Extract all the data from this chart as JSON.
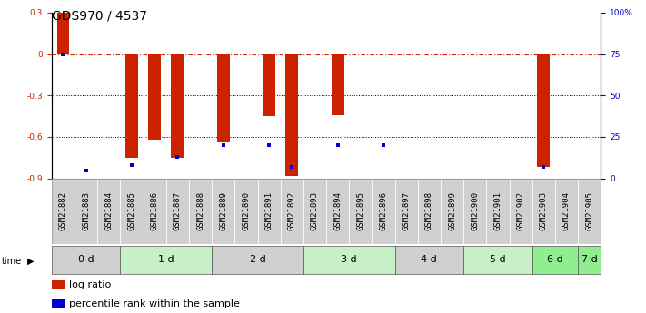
{
  "title": "GDS970 / 4537",
  "samples": [
    "GSM21882",
    "GSM21883",
    "GSM21884",
    "GSM21885",
    "GSM21886",
    "GSM21887",
    "GSM21888",
    "GSM21889",
    "GSM21890",
    "GSM21891",
    "GSM21892",
    "GSM21893",
    "GSM21894",
    "GSM21895",
    "GSM21896",
    "GSM21897",
    "GSM21898",
    "GSM21899",
    "GSM21900",
    "GSM21901",
    "GSM21902",
    "GSM21903",
    "GSM21904",
    "GSM21905"
  ],
  "log_ratio": [
    0.3,
    0.0,
    0.0,
    -0.75,
    -0.62,
    -0.75,
    0.0,
    -0.63,
    0.0,
    -0.45,
    -0.88,
    0.0,
    -0.44,
    0.0,
    0.0,
    0.0,
    0.0,
    0.0,
    0.0,
    0.0,
    0.0,
    -0.82,
    0.0,
    0.0
  ],
  "percentile_rank": [
    75,
    5,
    0,
    8,
    0,
    13,
    0,
    20,
    0,
    20,
    7,
    0,
    20,
    0,
    20,
    0,
    0,
    0,
    0,
    0,
    0,
    7,
    0,
    0
  ],
  "time_groups_order": [
    "0 d",
    "1 d",
    "2 d",
    "3 d",
    "4 d",
    "5 d",
    "6 d",
    "7 d"
  ],
  "time_groups": {
    "0 d": [
      0,
      1,
      2
    ],
    "1 d": [
      3,
      4,
      5,
      6
    ],
    "2 d": [
      7,
      8,
      9,
      10
    ],
    "3 d": [
      11,
      12,
      13,
      14
    ],
    "4 d": [
      15,
      16,
      17
    ],
    "5 d": [
      18,
      19,
      20
    ],
    "6 d": [
      21,
      22
    ],
    "7 d": [
      23
    ]
  },
  "time_group_colors": [
    "#d0d0d0",
    "#c8f0c8",
    "#d0d0d0",
    "#c8f0c8",
    "#d0d0d0",
    "#c8f0c8",
    "#90ee90",
    "#90ee90"
  ],
  "bar_color": "#cc2200",
  "dot_color": "#0000cc",
  "ylim_left": [
    -0.9,
    0.3
  ],
  "ylim_right": [
    0,
    100
  ],
  "yticks_left": [
    -0.9,
    -0.6,
    -0.3,
    0.0,
    0.3
  ],
  "ytick_labels_left": [
    "-0.9",
    "-0.6",
    "-0.3",
    "0",
    "0.3"
  ],
  "yticks_right": [
    0,
    25,
    50,
    75,
    100
  ],
  "ytick_labels_right": [
    "0",
    "25",
    "50",
    "75",
    "100%"
  ],
  "hline_y": 0.0,
  "dotted_lines": [
    -0.3,
    -0.6
  ],
  "bar_width": 0.55,
  "title_fontsize": 10,
  "tick_fontsize": 6.5,
  "legend_fontsize": 8,
  "sample_bg_color": "#d0d0d0"
}
